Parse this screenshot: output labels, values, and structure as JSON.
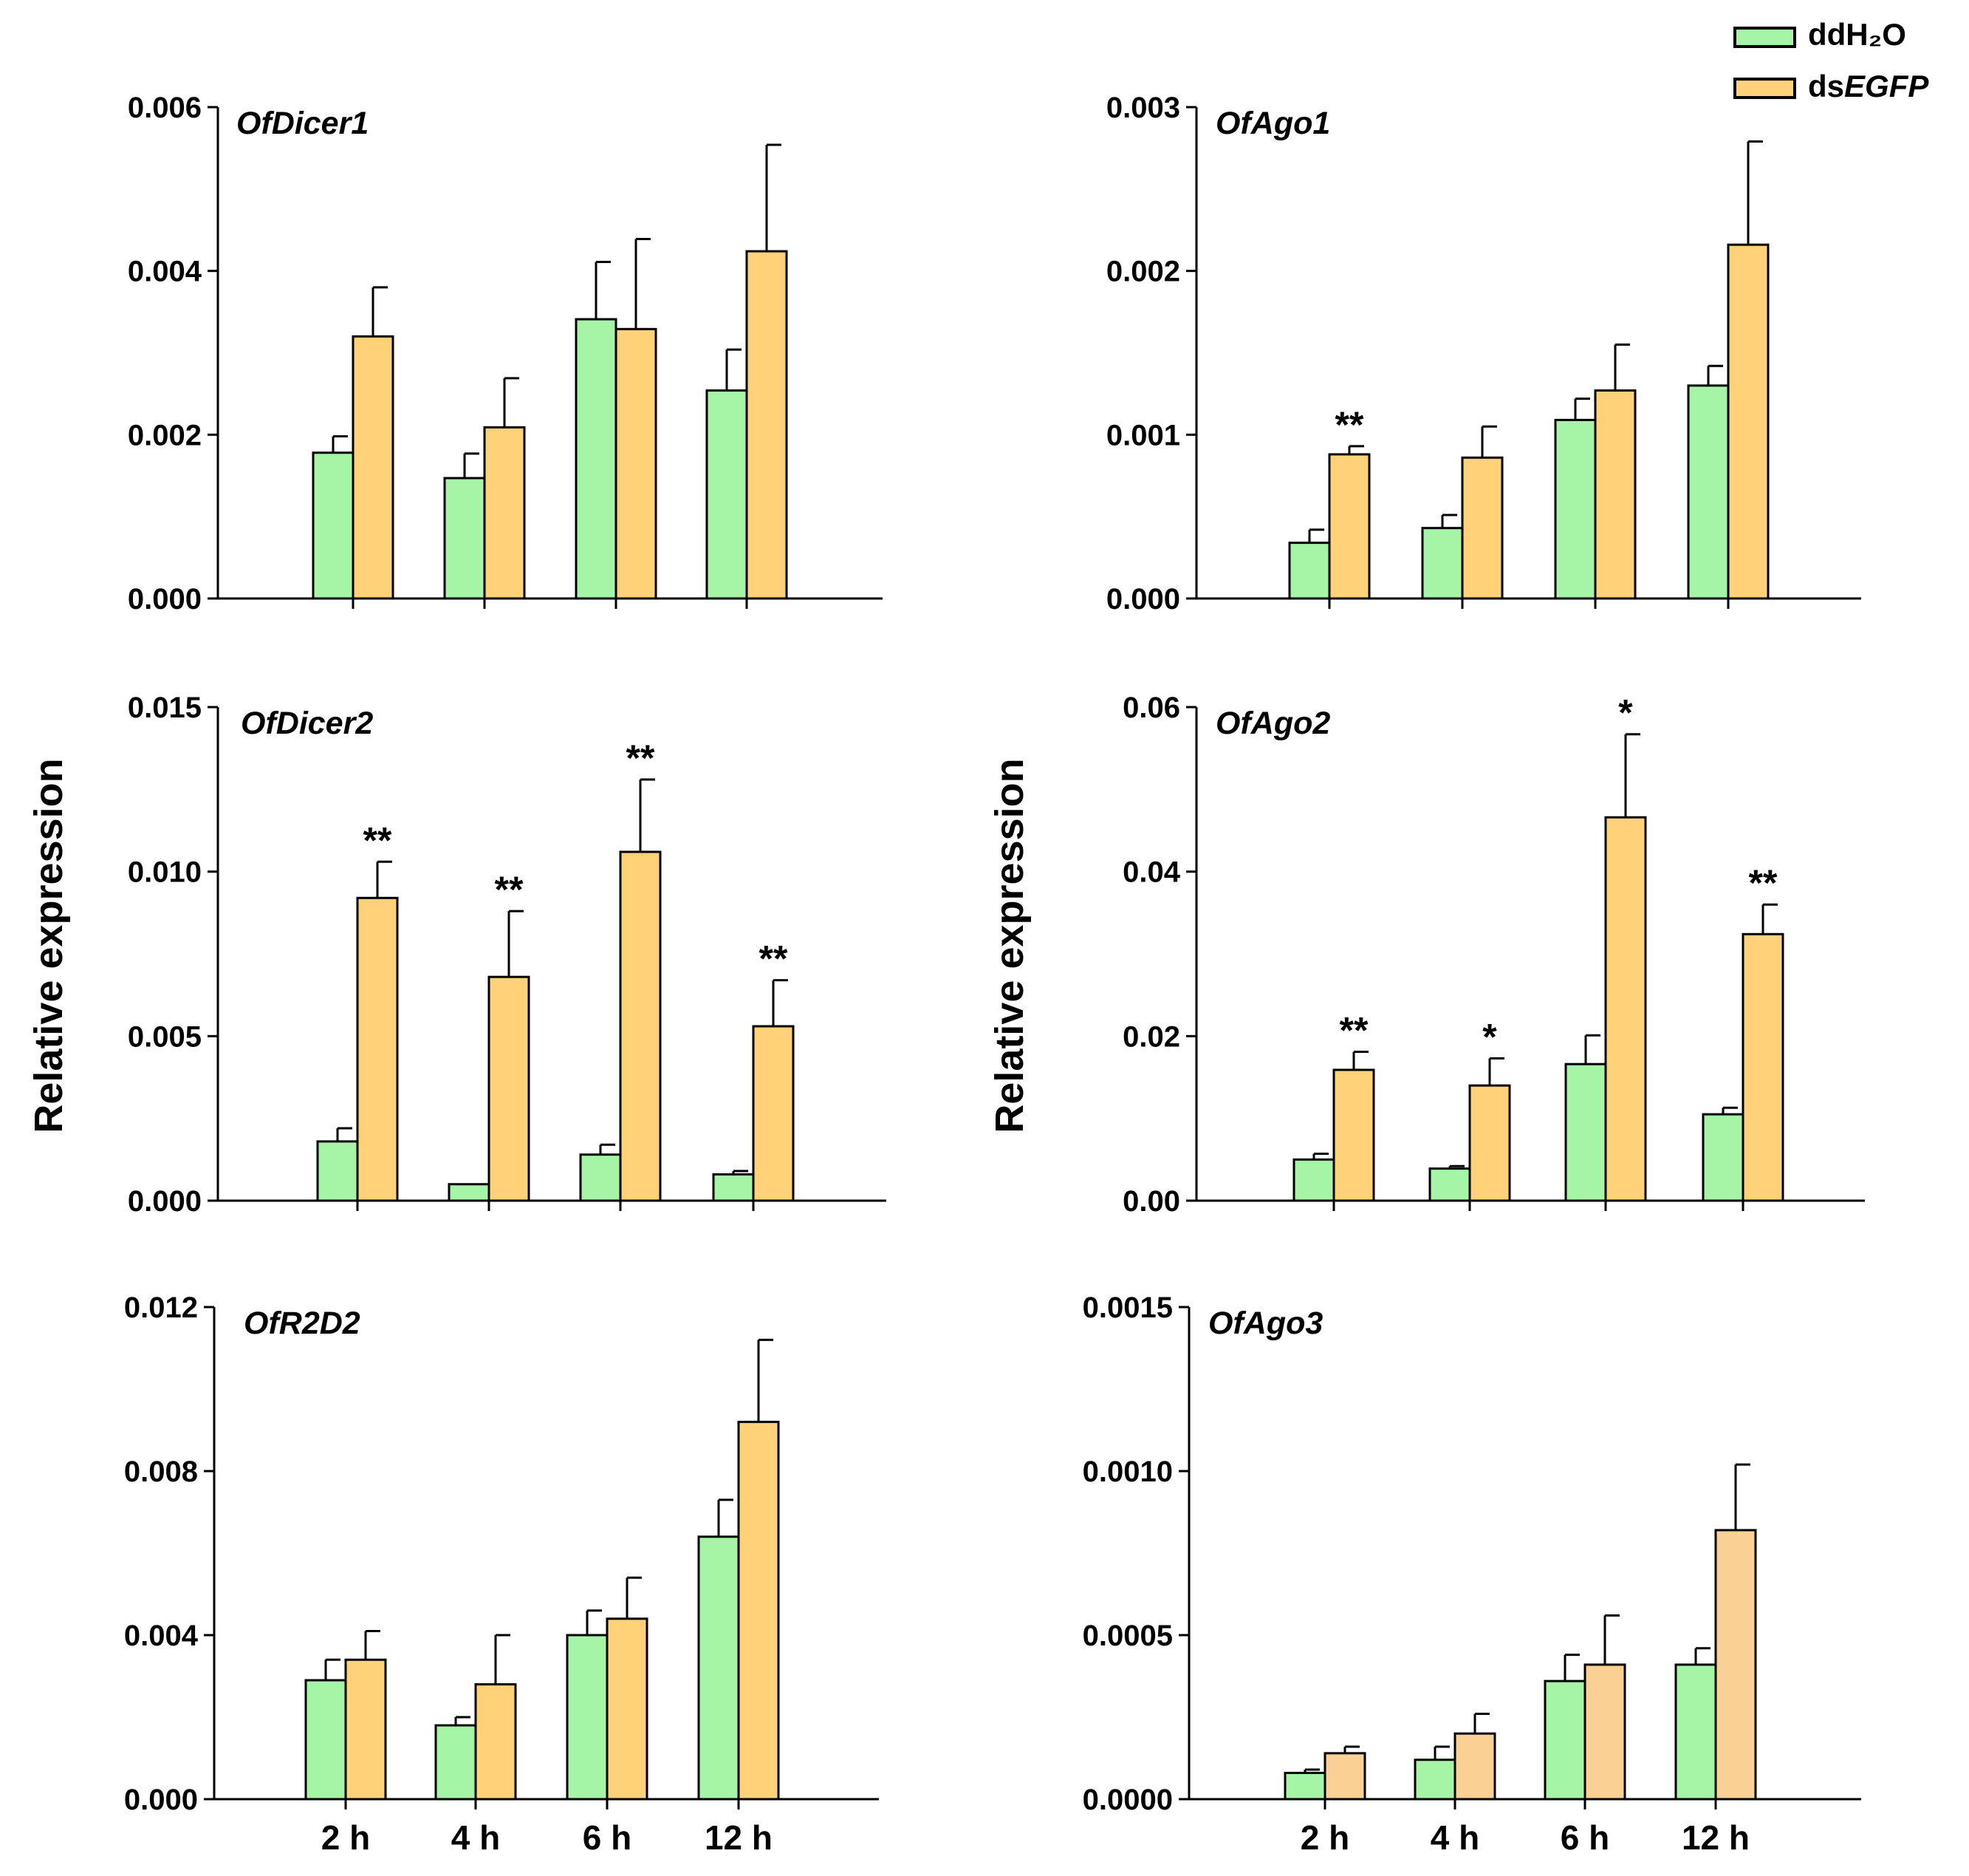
{
  "legend": {
    "entries": [
      {
        "label": "ddH₂O",
        "label_parts": [
          "ddH₂O"
        ],
        "color": "#a6f5a6"
      },
      {
        "label": "dsEGFP",
        "label_parts": [
          "ds",
          "EGFP"
        ],
        "color": "#ffd27a"
      }
    ]
  },
  "ylabel": "Relative expression",
  "colors": {
    "ddH2O": "#a6f5a6",
    "dsEGFP": "#ffd27a",
    "dsEGFP_ago3": "#fad094",
    "axis": "#000000"
  },
  "chart_data": [
    {
      "type": "bar",
      "title": "OfDicer1",
      "categories": [
        "2 h",
        "4 h",
        "6 h",
        "12 h"
      ],
      "show_xticklabels": false,
      "ylim": [
        0,
        0.006
      ],
      "yticks": [
        "0.000",
        "0.002",
        "0.004",
        "0.006"
      ],
      "series": [
        {
          "name": "ddH2O",
          "values": [
            0.00178,
            0.00147,
            0.00341,
            0.00254
          ],
          "errors": [
            0.0002,
            0.0003,
            0.0007,
            0.0005
          ]
        },
        {
          "name": "dsEGFP",
          "values": [
            0.0032,
            0.00209,
            0.00329,
            0.00424
          ],
          "errors": [
            0.0006,
            0.0006,
            0.0011,
            0.0013
          ]
        }
      ],
      "significance": [
        "",
        "",
        "",
        ""
      ]
    },
    {
      "type": "bar",
      "title": "OfAgo1",
      "categories": [
        "2 h",
        "4 h",
        "6 h",
        "12 h"
      ],
      "show_xticklabels": false,
      "ylim": [
        0,
        0.003
      ],
      "yticks": [
        "0.000",
        "0.001",
        "0.002",
        "0.003"
      ],
      "series": [
        {
          "name": "ddH2O",
          "values": [
            0.00034,
            0.00043,
            0.00109,
            0.0013
          ],
          "errors": [
            8e-05,
            8e-05,
            0.00013,
            0.00012
          ]
        },
        {
          "name": "dsEGFP",
          "values": [
            0.00088,
            0.00086,
            0.00127,
            0.00216
          ],
          "errors": [
            5e-05,
            0.00019,
            0.00028,
            0.00063
          ]
        }
      ],
      "significance": [
        "**",
        "",
        "",
        ""
      ]
    },
    {
      "type": "bar",
      "title": "OfDicer2",
      "categories": [
        "2 h",
        "4 h",
        "6 h",
        "12 h"
      ],
      "show_xticklabels": false,
      "ylim": [
        0,
        0.015
      ],
      "yticks": [
        "0.000",
        "0.005",
        "0.010",
        "0.015"
      ],
      "series": [
        {
          "name": "ddH2O",
          "values": [
            0.0018,
            0.0005,
            0.0014,
            0.0008
          ],
          "errors": [
            0.0004,
            0.0,
            0.0003,
            0.0001
          ]
        },
        {
          "name": "dsEGFP",
          "values": [
            0.0092,
            0.0068,
            0.0106,
            0.0053
          ],
          "errors": [
            0.0011,
            0.002,
            0.0022,
            0.0014
          ]
        }
      ],
      "significance": [
        "**",
        "**",
        "**",
        "**"
      ]
    },
    {
      "type": "bar",
      "title": "OfAgo2",
      "categories": [
        "2 h",
        "4 h",
        "6 h",
        "12 h"
      ],
      "show_xticklabels": false,
      "ylim": [
        0,
        0.06
      ],
      "yticks": [
        "0.00",
        "0.02",
        "0.04",
        "0.06"
      ],
      "series": [
        {
          "name": "ddH2O",
          "values": [
            0.005,
            0.0039,
            0.0166,
            0.0105
          ],
          "errors": [
            0.0007,
            0.0003,
            0.0035,
            0.0008
          ]
        },
        {
          "name": "dsEGFP",
          "values": [
            0.0159,
            0.014,
            0.0466,
            0.0324
          ],
          "errors": [
            0.0022,
            0.0033,
            0.0101,
            0.0036
          ]
        }
      ],
      "significance": [
        "**",
        "*",
        "*",
        "**"
      ]
    },
    {
      "type": "bar",
      "title": "OfR2D2",
      "categories": [
        "2 h",
        "4 h",
        "6 h",
        "12 h"
      ],
      "show_xticklabels": true,
      "ylim": [
        0,
        0.012
      ],
      "yticks": [
        "0.000",
        "0.004",
        "0.008",
        "0.012"
      ],
      "series": [
        {
          "name": "ddH2O",
          "values": [
            0.0029,
            0.0018,
            0.004,
            0.0064
          ],
          "errors": [
            0.0005,
            0.0002,
            0.0006,
            0.0009
          ]
        },
        {
          "name": "dsEGFP",
          "values": [
            0.0034,
            0.0028,
            0.0044,
            0.0092
          ],
          "errors": [
            0.0007,
            0.0012,
            0.001,
            0.002
          ]
        }
      ],
      "significance": [
        "",
        "",
        "",
        ""
      ]
    },
    {
      "type": "bar",
      "title": "OfAgo3",
      "categories": [
        "2 h",
        "4 h",
        "6 h",
        "12 h"
      ],
      "show_xticklabels": true,
      "ylim": [
        0,
        0.0015
      ],
      "yticks": [
        "0.0000",
        "0.0005",
        "0.0010",
        "0.0015"
      ],
      "series": [
        {
          "name": "ddH2O",
          "values": [
            8e-05,
            0.00012,
            0.00036,
            0.00041
          ],
          "errors": [
            1e-05,
            4e-05,
            8e-05,
            5e-05
          ]
        },
        {
          "name": "dsEGFP",
          "values": [
            0.00014,
            0.0002,
            0.00041,
            0.00082
          ],
          "errors": [
            2e-05,
            6e-05,
            0.00015,
            0.0002
          ]
        }
      ],
      "significance": [
        "",
        "",
        "",
        ""
      ]
    }
  ]
}
